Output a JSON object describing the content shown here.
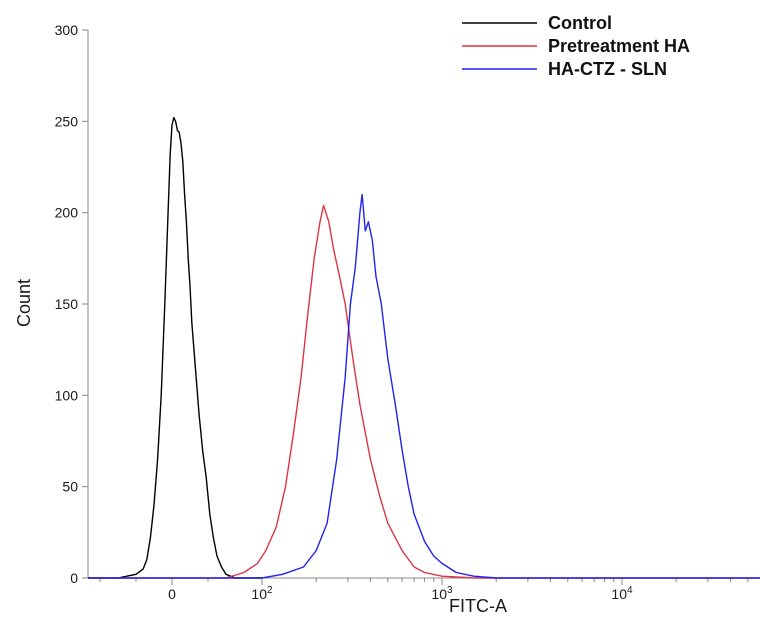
{
  "chart_data": {
    "type": "line",
    "title": "",
    "xlabel": "FITC-A",
    "ylabel": "Count",
    "x_scale": "biexponential",
    "x_ticks": [
      {
        "value": 0,
        "base": "0",
        "exp": ""
      },
      {
        "value": 100,
        "base": "10",
        "exp": "2"
      },
      {
        "value": 1000,
        "base": "10",
        "exp": "3"
      },
      {
        "value": 10000,
        "base": "10",
        "exp": "4"
      }
    ],
    "y_ticks": [
      "0",
      "50",
      "100",
      "150",
      "200",
      "250",
      "300"
    ],
    "ylim": [
      0,
      300
    ],
    "grid": false,
    "legend_position": "top-right",
    "colors": {
      "axis": "#888888",
      "control": "#000000",
      "pretreatment": "#dd3344",
      "ha_ctz_sln": "#2222ee"
    },
    "series": [
      {
        "name": "Control",
        "color": "#000000",
        "points": [
          [
            -100,
            0
          ],
          [
            -60,
            0
          ],
          [
            -40,
            2
          ],
          [
            -32,
            5
          ],
          [
            -28,
            10
          ],
          [
            -24,
            22
          ],
          [
            -20,
            40
          ],
          [
            -16,
            65
          ],
          [
            -12,
            100
          ],
          [
            -8,
            150
          ],
          [
            -4,
            205
          ],
          [
            -2,
            232
          ],
          [
            0,
            248
          ],
          [
            2,
            252
          ],
          [
            4,
            250
          ],
          [
            6,
            245
          ],
          [
            8,
            244
          ],
          [
            10,
            238
          ],
          [
            12,
            228
          ],
          [
            14,
            210
          ],
          [
            16,
            195
          ],
          [
            18,
            175
          ],
          [
            20,
            160
          ],
          [
            22,
            140
          ],
          [
            26,
            115
          ],
          [
            30,
            90
          ],
          [
            34,
            70
          ],
          [
            38,
            55
          ],
          [
            42,
            35
          ],
          [
            46,
            22
          ],
          [
            50,
            12
          ],
          [
            55,
            6
          ],
          [
            60,
            2
          ],
          [
            70,
            0
          ],
          [
            100,
            0
          ]
        ]
      },
      {
        "name": "Pretreatment HA",
        "color": "#dd3344",
        "points": [
          [
            -100,
            0
          ],
          [
            60,
            0
          ],
          [
            80,
            3
          ],
          [
            95,
            8
          ],
          [
            105,
            15
          ],
          [
            120,
            28
          ],
          [
            135,
            50
          ],
          [
            150,
            80
          ],
          [
            165,
            110
          ],
          [
            180,
            145
          ],
          [
            195,
            175
          ],
          [
            210,
            195
          ],
          [
            220,
            204
          ],
          [
            235,
            195
          ],
          [
            250,
            180
          ],
          [
            270,
            165
          ],
          [
            290,
            150
          ],
          [
            320,
            120
          ],
          [
            350,
            95
          ],
          [
            400,
            65
          ],
          [
            450,
            45
          ],
          [
            500,
            30
          ],
          [
            600,
            15
          ],
          [
            700,
            6
          ],
          [
            800,
            3
          ],
          [
            1000,
            1
          ],
          [
            1500,
            0
          ],
          [
            60000,
            0
          ]
        ]
      },
      {
        "name": "HA-CTZ - SLN",
        "color": "#2222ee",
        "points": [
          [
            -100,
            0
          ],
          [
            100,
            0
          ],
          [
            130,
            2
          ],
          [
            170,
            6
          ],
          [
            200,
            15
          ],
          [
            230,
            30
          ],
          [
            260,
            65
          ],
          [
            290,
            110
          ],
          [
            310,
            150
          ],
          [
            330,
            170
          ],
          [
            350,
            200
          ],
          [
            360,
            210
          ],
          [
            375,
            190
          ],
          [
            390,
            195
          ],
          [
            410,
            185
          ],
          [
            430,
            165
          ],
          [
            460,
            150
          ],
          [
            500,
            120
          ],
          [
            550,
            95
          ],
          [
            600,
            70
          ],
          [
            650,
            50
          ],
          [
            700,
            35
          ],
          [
            800,
            20
          ],
          [
            900,
            12
          ],
          [
            1000,
            8
          ],
          [
            1200,
            3
          ],
          [
            1500,
            1
          ],
          [
            2000,
            0
          ],
          [
            60000,
            0
          ]
        ]
      }
    ]
  },
  "legend": [
    {
      "label": "Control",
      "color": "#000000"
    },
    {
      "label": "Pretreatment HA",
      "color": "#dd3344"
    },
    {
      "label": "HA-CTZ - SLN",
      "color": "#2222ee"
    }
  ]
}
